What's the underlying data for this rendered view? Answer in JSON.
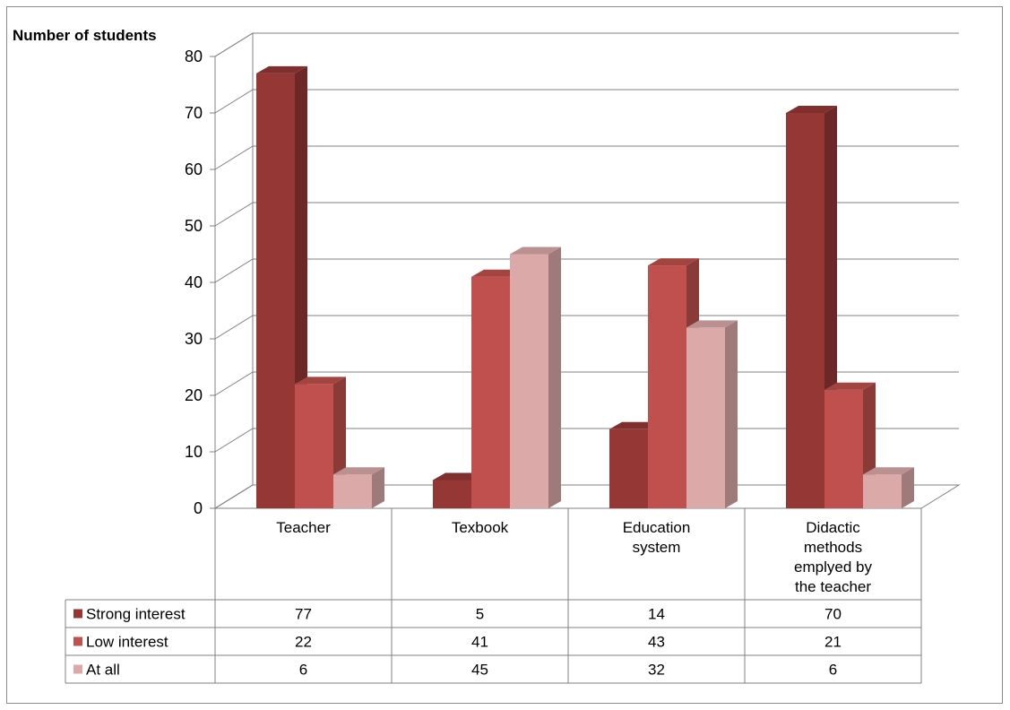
{
  "chart_data": {
    "type": "bar",
    "ylabel": "Number of students",
    "xlabel": "",
    "ylim": [
      0,
      80
    ],
    "yticks": [
      0,
      10,
      20,
      30,
      40,
      50,
      60,
      70,
      80
    ],
    "categories": [
      [
        "Teacher"
      ],
      [
        "Texbook"
      ],
      [
        "Education",
        "system"
      ],
      [
        "Didactic",
        "methods",
        "emplyed by",
        "the teacher"
      ]
    ],
    "series": [
      {
        "name": "Strong interest",
        "values": [
          77,
          5,
          14,
          70
        ],
        "color": "#953735"
      },
      {
        "name": "Low interest",
        "values": [
          22,
          41,
          43,
          21
        ],
        "color": "#c0504d"
      },
      {
        "name": "At all",
        "values": [
          6,
          45,
          32,
          6
        ],
        "color": "#dca9a9"
      }
    ],
    "grid": true,
    "legend": "data-table-left",
    "projection": "3d-clustered-column"
  }
}
